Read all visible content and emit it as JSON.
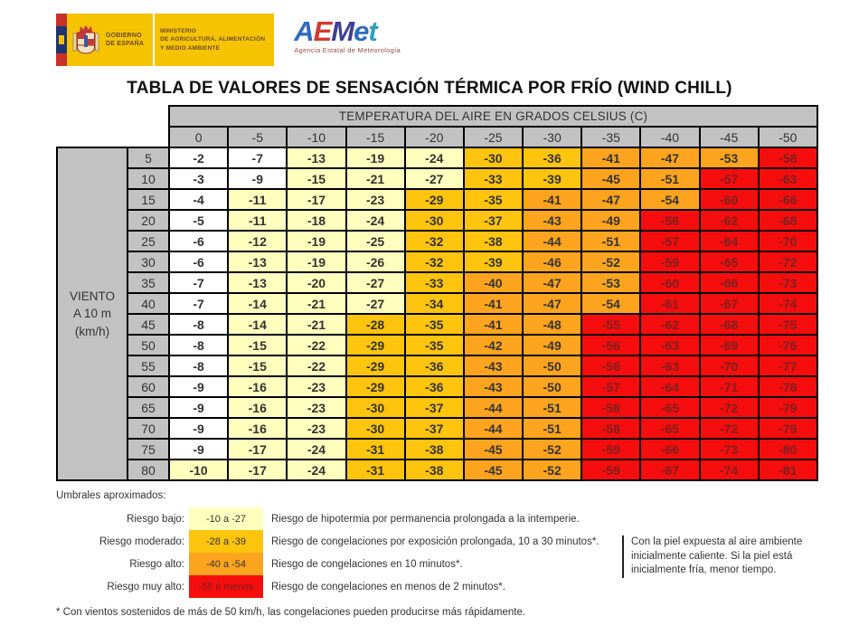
{
  "logo": {
    "gobierno_lines": [
      "GOBIERNO",
      "DE ESPAÑA"
    ],
    "ministerio_lines": [
      "MINISTERIO",
      "DE AGRICULTURA, ALIMENTACIÓN",
      "Y MEDIO AMBIENTE"
    ],
    "aemet_letters": [
      {
        "ch": "A",
        "color": "#2f6bbf"
      },
      {
        "ch": "E",
        "color": "#d23b2f"
      },
      {
        "ch": "M",
        "color": "#3c3f92"
      },
      {
        "ch": "e",
        "color": "#2f6bbf"
      },
      {
        "ch": "t",
        "color": "#2f9fbf"
      }
    ],
    "aemet_subtitle": "Agencia Estatal de Meteorología"
  },
  "title": "TABLA DE VALORES DE SENSACIÓN TÉRMICA POR FRÍO (WIND CHILL)",
  "table": {
    "temp_header": "TEMPERATURA DEL AIRE EN GRADOS CELSIUS (C)",
    "wind_label_lines": [
      "VIENTO",
      "A 10 m",
      "(km/h)"
    ]
  },
  "colors": {
    "header_gray": "#C2C2C2",
    "risk_none": "#FFFFFF",
    "risk_low": "#FFFFBE",
    "risk_moderate": "#FFC40E",
    "risk_high": "#FFA41E",
    "risk_veryhigh": "#F60D0D",
    "veryhigh_text": "#7A2121"
  },
  "legend": {
    "heading": "Umbrales aproximados:",
    "items": [
      {
        "label": "Riesgo bajo:",
        "range": "-10 a -27",
        "risk": "low",
        "desc": "Riesgo de hipotermia por permanencia prolongada a la intemperie."
      },
      {
        "label": "Riesgo moderado:",
        "range": "-28 a -39",
        "risk": "moderate",
        "desc": "Riesgo de congelaciones por exposición prolongada, 10 a 30 minutos*."
      },
      {
        "label": "Riesgo alto:",
        "range": "-40 a -54",
        "risk": "high",
        "desc": "Riesgo de congelaciones en 10 minutos*."
      },
      {
        "label": "Riesgo muy alto:",
        "range": "-55 ó menos",
        "risk": "veryhigh",
        "desc": "Riesgo de congelaciones en menos de 2 minutos*."
      }
    ]
  },
  "side_note": "Con la piel expuesta al aire ambiente inicialmente caliente. Si la piel está inicialmente fría, menor tiempo.",
  "footnote": "* Con vientos sostenidos de más de 50 km/h, las congelaciones pueden producirse más rápidamente.",
  "chart_data": {
    "type": "heatmap",
    "title": "TABLA DE VALORES DE SENSACIÓN TÉRMICA POR FRÍO (WIND CHILL)",
    "xlabel": "TEMPERATURA DEL AIRE EN GRADOS CELSIUS (C)",
    "ylabel": "VIENTO A 10 m (km/h)",
    "x": [
      0,
      -5,
      -10,
      -15,
      -20,
      -25,
      -30,
      -35,
      -40,
      -45,
      -50
    ],
    "y": [
      5,
      10,
      15,
      20,
      25,
      30,
      35,
      40,
      45,
      50,
      55,
      60,
      65,
      70,
      75,
      80
    ],
    "values": [
      [
        -2,
        -7,
        -13,
        -19,
        -24,
        -30,
        -36,
        -41,
        -47,
        -53,
        -58
      ],
      [
        -3,
        -9,
        -15,
        -21,
        -27,
        -33,
        -39,
        -45,
        -51,
        -57,
        -63
      ],
      [
        -4,
        -11,
        -17,
        -23,
        -29,
        -35,
        -41,
        -47,
        -54,
        -60,
        -66
      ],
      [
        -5,
        -11,
        -18,
        -24,
        -30,
        -37,
        -43,
        -49,
        -56,
        -62,
        -68
      ],
      [
        -6,
        -12,
        -19,
        -25,
        -32,
        -38,
        -44,
        -51,
        -57,
        -64,
        -70
      ],
      [
        -6,
        -13,
        -19,
        -26,
        -32,
        -39,
        -46,
        -52,
        -59,
        -65,
        -72
      ],
      [
        -7,
        -13,
        -20,
        -27,
        -33,
        -40,
        -47,
        -53,
        -60,
        -66,
        -73
      ],
      [
        -7,
        -14,
        -21,
        -27,
        -34,
        -41,
        -47,
        -54,
        -61,
        -67,
        -74
      ],
      [
        -8,
        -14,
        -21,
        -28,
        -35,
        -41,
        -48,
        -55,
        -62,
        -68,
        -75
      ],
      [
        -8,
        -15,
        -22,
        -29,
        -35,
        -42,
        -49,
        -56,
        -63,
        -69,
        -76
      ],
      [
        -8,
        -15,
        -22,
        -29,
        -36,
        -43,
        -50,
        -56,
        -63,
        -70,
        -77
      ],
      [
        -9,
        -16,
        -23,
        -29,
        -36,
        -43,
        -50,
        -57,
        -64,
        -71,
        -78
      ],
      [
        -9,
        -16,
        -23,
        -30,
        -37,
        -44,
        -51,
        -58,
        -65,
        -72,
        -79
      ],
      [
        -9,
        -16,
        -23,
        -30,
        -37,
        -44,
        -51,
        -58,
        -65,
        -72,
        -79
      ],
      [
        -9,
        -17,
        -24,
        -31,
        -38,
        -45,
        -52,
        -59,
        -66,
        -73,
        -80
      ],
      [
        -10,
        -17,
        -24,
        -31,
        -38,
        -45,
        -52,
        -59,
        -67,
        -74,
        -81
      ]
    ],
    "legend_position": "bottom",
    "default_cell_color": "#FFFFFF",
    "color_thresholds": [
      {
        "range": "-10 a -27",
        "label": "Riesgo bajo",
        "color": "#FFFFBE"
      },
      {
        "range": "-28 a -39",
        "label": "Riesgo moderado",
        "color": "#FFC40E"
      },
      {
        "range": "-40 a -54",
        "label": "Riesgo alto",
        "color": "#FFA41E"
      },
      {
        "range": "-55 ó menos",
        "label": "Riesgo muy alto",
        "color": "#F60D0D"
      }
    ]
  }
}
